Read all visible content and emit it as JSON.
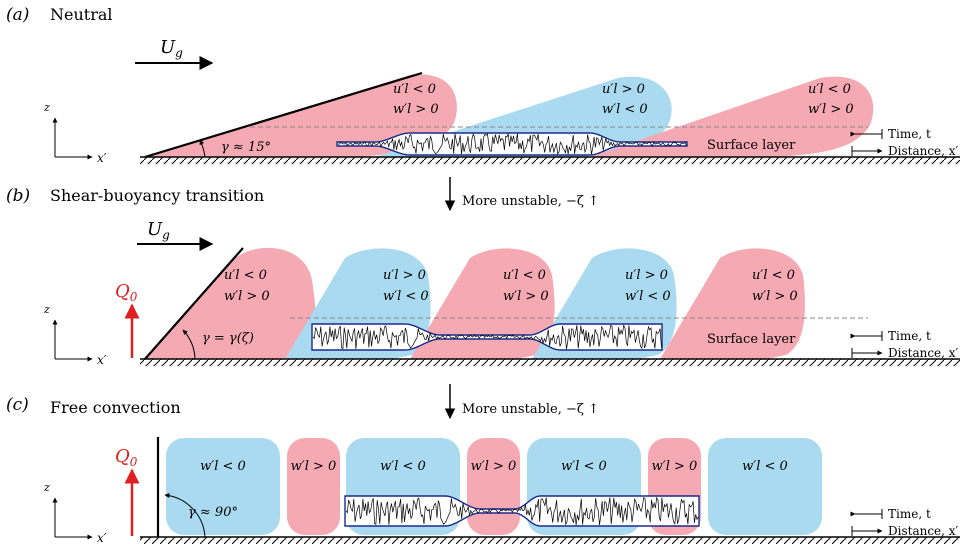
{
  "panels": [
    {
      "letter": "(a)",
      "title": "Neutral",
      "arrow_label": "U",
      "arrow_sub": "g",
      "angle_label": "γ ≈ 15°",
      "surface_label": "Surface layer",
      "lobes": [
        {
          "l1": "u′l < 0",
          "l2": "w′l > 0"
        },
        {
          "l1": "u′l > 0",
          "l2": "w′l < 0"
        },
        {
          "l1": "u′l < 0",
          "l2": "w′l > 0"
        }
      ]
    },
    {
      "letter": "(b)",
      "title": "Shear-buoyancy transition",
      "arrow_label": "U",
      "arrow_sub": "g",
      "heat_flux": "Q",
      "heat_flux_sub": "0",
      "angle_label": "γ = γ(ζ)",
      "surface_label": "Surface layer",
      "lobes": [
        {
          "l1": "u′l < 0",
          "l2": "w′l > 0"
        },
        {
          "l1": "u′l > 0",
          "l2": "w′l < 0"
        },
        {
          "l1": "u′l < 0",
          "l2": "w′l > 0"
        },
        {
          "l1": "u′l > 0",
          "l2": "w′l < 0"
        },
        {
          "l1": "u′l < 0",
          "l2": "w′l > 0"
        }
      ]
    },
    {
      "letter": "(c)",
      "title": "Free convection",
      "heat_flux": "Q",
      "heat_flux_sub": "0",
      "angle_label": "γ ≈ 90°",
      "cells": [
        "w′l < 0",
        "w′l > 0",
        "w′l < 0",
        "w′l > 0",
        "w′l < 0",
        "w′l > 0",
        "w′l < 0"
      ]
    }
  ],
  "transitions": [
    "More unstable,  −ζ ↑",
    "More unstable,  −ζ ↑"
  ],
  "axes": {
    "z": "z",
    "x": "x′"
  },
  "legend": {
    "time": "Time, t",
    "distance": "Distance,  x′"
  },
  "colors": {
    "updraft": "#f4a9b3",
    "downdraft": "#a9daf0",
    "flux": "#e02020",
    "tube": "#1a2a8a"
  }
}
